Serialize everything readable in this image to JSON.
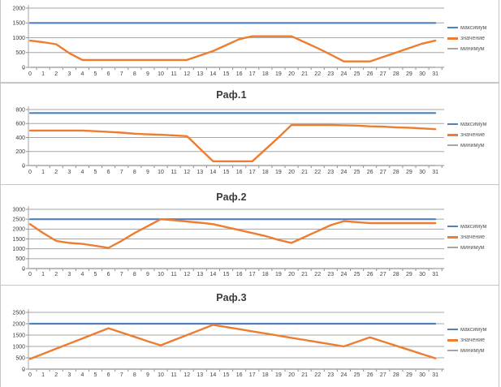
{
  "page": {
    "background": "#ffffff"
  },
  "legend_labels": [
    "максимум",
    "значение",
    "минимум"
  ],
  "colors": {
    "maximum": "#4e81bd",
    "value": "#ed7d31",
    "minimum": "#a6a6a6",
    "gridline": "#a6a6a6",
    "axis": "#8c8c8c",
    "tick_text": "#404040",
    "title_text": "#3a3a3a"
  },
  "chart_data": [
    {
      "type": "line",
      "title": "",
      "categories": [
        0,
        1,
        2,
        3,
        4,
        5,
        6,
        7,
        8,
        9,
        10,
        11,
        12,
        13,
        14,
        15,
        16,
        17,
        18,
        19,
        20,
        21,
        22,
        23,
        24,
        25,
        26,
        27,
        28,
        29,
        30,
        31
      ],
      "yticks": [
        0,
        500,
        1000,
        1500,
        2000
      ],
      "ylim": [
        0,
        2000
      ],
      "legend_position": "right",
      "grid": true,
      "series": [
        {
          "name": "максимум",
          "color": "#4e81bd",
          "constant": 1500
        },
        {
          "name": "значение",
          "color": "#ed7d31",
          "values": [
            900,
            850,
            780,
            480,
            250,
            250,
            250,
            250,
            250,
            250,
            250,
            250,
            250,
            400,
            550,
            750,
            950,
            1050,
            1050,
            1050,
            1050,
            850,
            650,
            430,
            200,
            200,
            200,
            350,
            500,
            650,
            800,
            900
          ]
        },
        {
          "name": "минимум",
          "color": "#a6a6a6",
          "constant": 0
        }
      ]
    },
    {
      "type": "line",
      "title": "Раф.1",
      "categories": [
        0,
        1,
        2,
        3,
        4,
        5,
        6,
        7,
        8,
        9,
        10,
        11,
        12,
        13,
        14,
        15,
        16,
        17,
        18,
        19,
        20,
        21,
        22,
        23,
        24,
        25,
        26,
        27,
        28,
        29,
        30,
        31
      ],
      "yticks": [
        0,
        200,
        400,
        600,
        800
      ],
      "ylim": [
        0,
        800
      ],
      "legend_position": "right",
      "grid": true,
      "series": [
        {
          "name": "максимум",
          "color": "#4e81bd",
          "constant": 750
        },
        {
          "name": "значение",
          "color": "#ed7d31",
          "values": [
            500,
            500,
            500,
            500,
            500,
            490,
            480,
            470,
            455,
            445,
            440,
            430,
            420,
            240,
            60,
            60,
            60,
            60,
            230,
            400,
            580,
            580,
            580,
            580,
            575,
            570,
            560,
            555,
            545,
            540,
            530,
            520
          ]
        },
        {
          "name": "минимум",
          "color": "#a6a6a6",
          "constant": 0
        }
      ]
    },
    {
      "type": "line",
      "title": "Раф.2",
      "categories": [
        0,
        1,
        2,
        3,
        4,
        5,
        6,
        7,
        8,
        9,
        10,
        11,
        12,
        13,
        14,
        15,
        16,
        17,
        18,
        19,
        20,
        21,
        22,
        23,
        24,
        25,
        26,
        27,
        28,
        29,
        30,
        31
      ],
      "yticks": [
        0,
        500,
        1000,
        1500,
        2000,
        2500,
        3000
      ],
      "ylim": [
        0,
        3000
      ],
      "legend_position": "right",
      "grid": true,
      "series": [
        {
          "name": "максимум",
          "color": "#4e81bd",
          "constant": 2500
        },
        {
          "name": "значение",
          "color": "#ed7d31",
          "values": [
            2250,
            1800,
            1400,
            1300,
            1250,
            1150,
            1050,
            1400,
            1800,
            2150,
            2500,
            2450,
            2380,
            2320,
            2250,
            2100,
            1950,
            1800,
            1650,
            1450,
            1300,
            1600,
            1900,
            2200,
            2400,
            2350,
            2300,
            2300,
            2300,
            2300,
            2300,
            2300
          ]
        },
        {
          "name": "минимум",
          "color": "#a6a6a6",
          "constant": 0
        }
      ]
    },
    {
      "type": "line",
      "title": "Раф.3",
      "categories": [
        0,
        1,
        2,
        3,
        4,
        5,
        6,
        7,
        8,
        9,
        10,
        11,
        12,
        13,
        14,
        15,
        16,
        17,
        18,
        19,
        20,
        21,
        22,
        23,
        24,
        25,
        26,
        27,
        28,
        29,
        30,
        31
      ],
      "yticks": [
        0,
        500,
        1000,
        1500,
        2000,
        2500
      ],
      "ylim": [
        0,
        2500
      ],
      "legend_position": "right",
      "grid": true,
      "series": [
        {
          "name": "максимум",
          "color": "#4e81bd",
          "constant": 2000
        },
        {
          "name": "значение",
          "color": "#ed7d31",
          "values": [
            450,
            675,
            900,
            1125,
            1350,
            1575,
            1800,
            1610,
            1420,
            1230,
            1050,
            1275,
            1500,
            1725,
            1950,
            1855,
            1760,
            1665,
            1570,
            1475,
            1380,
            1285,
            1190,
            1095,
            1000,
            1200,
            1400,
            1215,
            1030,
            845,
            660,
            480
          ]
        },
        {
          "name": "минимум",
          "color": "#a6a6a6",
          "constant": 0
        }
      ]
    }
  ]
}
